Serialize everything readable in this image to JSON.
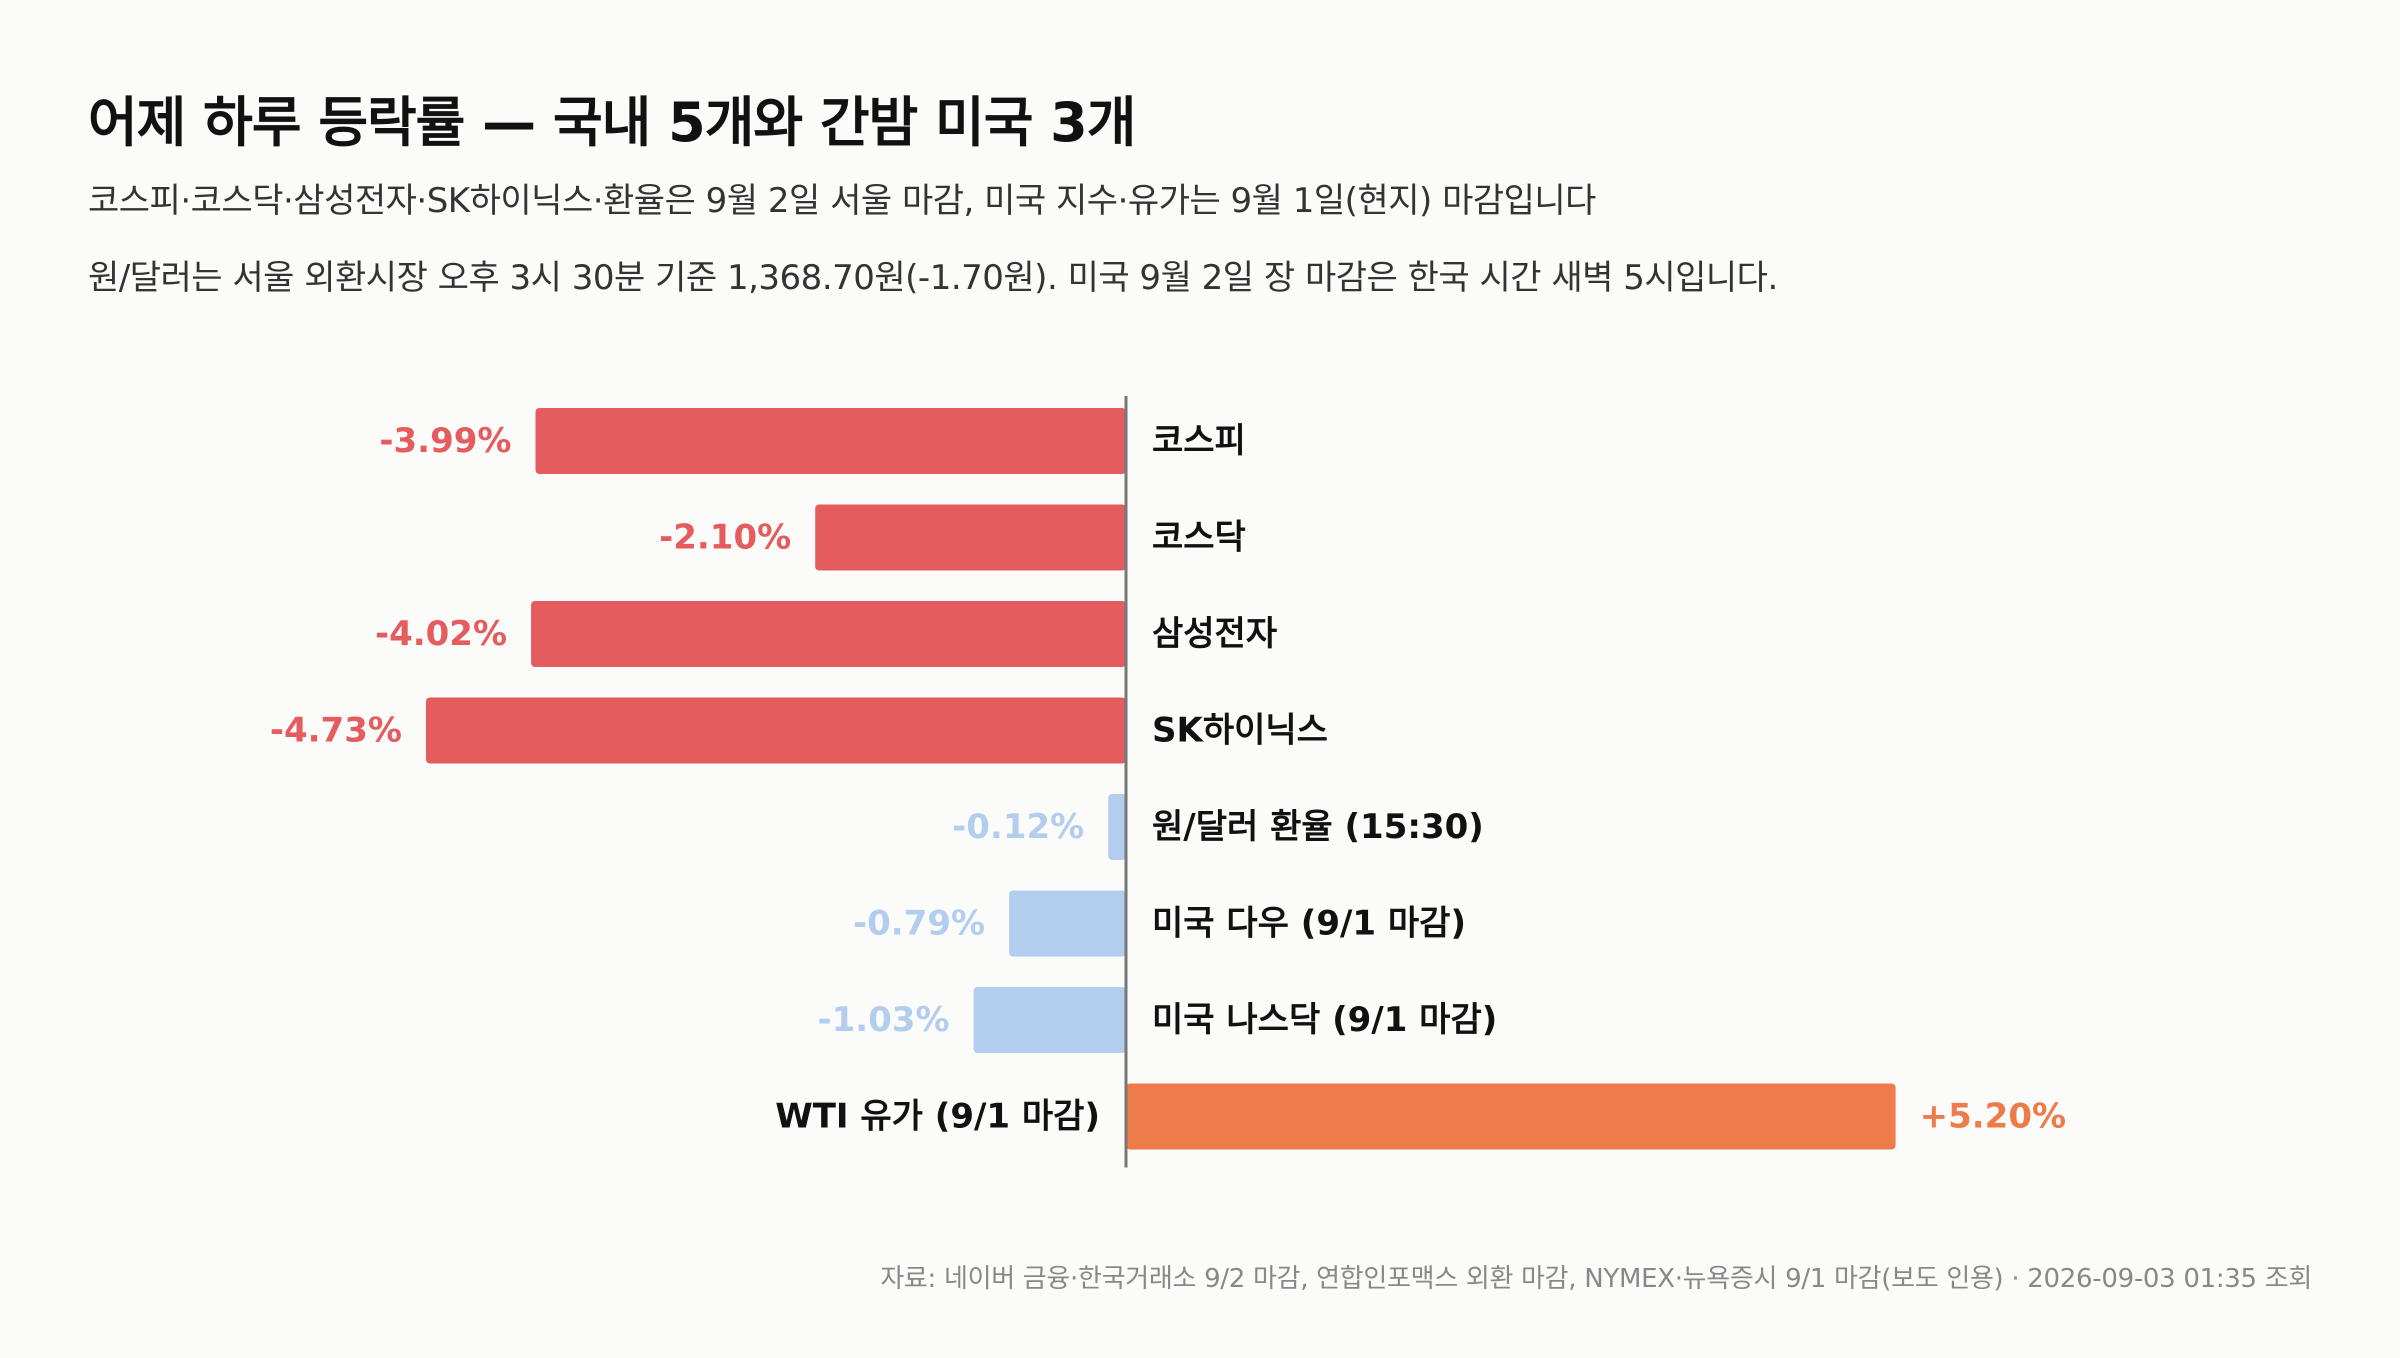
{
  "header": {
    "title": "어제 하루 등락률 — 국내 5개와 간밤 미국 3개",
    "subtitle_1": "코스피·코스닥·삼성전자·SK하이닉스·환율은 9월 2일 서울 마감, 미국 지수·유가는 9월 1일(현지) 마감입니다",
    "subtitle_2": "원/달러는 서울 외환시장 오후 3시 30분 기준 1,368.70원(-1.70원). 미국 9월 2일 장 마감은 한국 시간 새벽 5시입니다."
  },
  "chart_data": {
    "type": "bar",
    "orientation": "horizontal",
    "categories": [
      "코스피",
      "코스닥",
      "삼성전자",
      "SK하이닉스",
      "원/달러 환율 (15:30)",
      "미국 다우 (9/1 마감)",
      "미국 나스닥 (9/1 마감)",
      "WTI 유가 (9/1 마감)"
    ],
    "values": [
      -3.99,
      -2.1,
      -4.02,
      -4.73,
      -0.12,
      -0.79,
      -1.03,
      5.2
    ],
    "value_labels": [
      "-3.99%",
      "-2.10%",
      "-4.02%",
      "-4.73%",
      "-0.12%",
      "-0.79%",
      "-1.03%",
      "+5.20%"
    ],
    "bar_groups": [
      "domestic",
      "domestic",
      "domestic",
      "domestic",
      "light",
      "light",
      "light",
      "oil"
    ],
    "colors": {
      "domestic": "#e55c5e",
      "light": "#b3cdee",
      "oil": "#ee7b4a",
      "zero_line": "#777777",
      "category_text": "#111111"
    },
    "grid": false,
    "legend": "none"
  },
  "footer": {
    "source": "자료: 네이버 금융·한국거래소 9/2 마감, 연합인포맥스 외환 마감, NYMEX·뉴욕증시 9/1 마감(보도 인용) · 2026-09-03 01:35 조회"
  }
}
